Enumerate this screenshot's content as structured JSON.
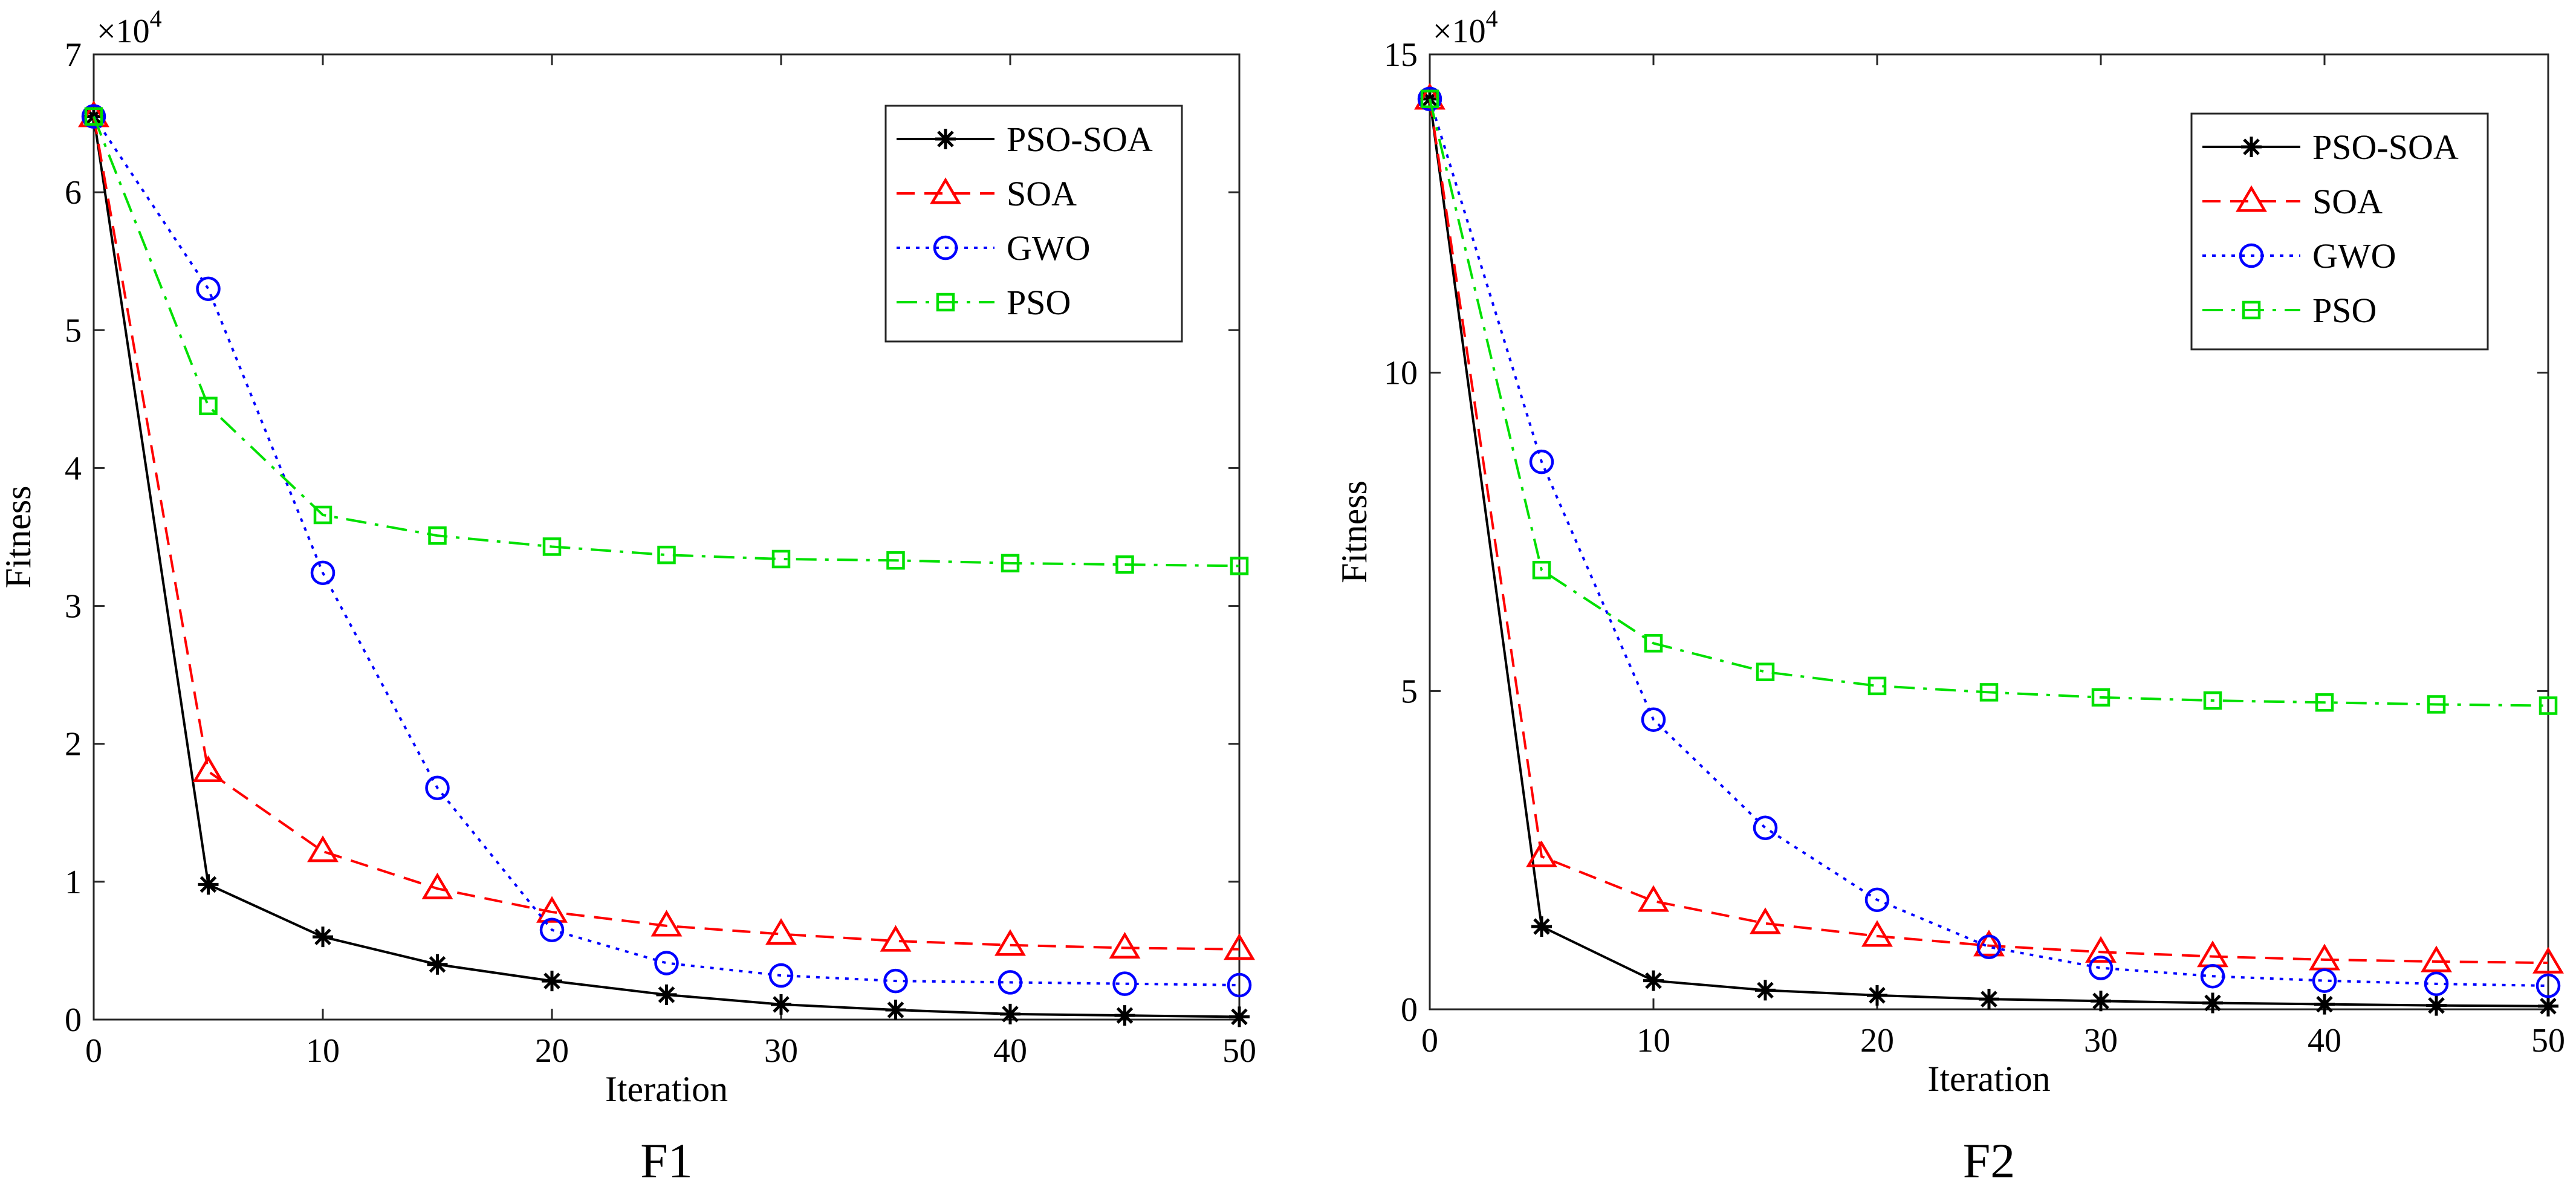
{
  "chart_data": [
    {
      "type": "line",
      "title": "F1",
      "xlabel": "Iteration",
      "ylabel": "Fitness",
      "exponent_label": "×10",
      "exponent_power": "4",
      "xlim": [
        0,
        50
      ],
      "ylim": [
        0,
        7
      ],
      "xticks": [
        0,
        10,
        20,
        30,
        40,
        50
      ],
      "yticks": [
        0,
        1,
        2,
        3,
        4,
        5,
        6,
        7
      ],
      "x": [
        0,
        5,
        10,
        15,
        20,
        25,
        30,
        35,
        40,
        45,
        50
      ],
      "legend_position": "top-right",
      "series": [
        {
          "name": "PSO-SOA",
          "color": "#000000",
          "dash": "solid",
          "marker": "star",
          "values": [
            6.55,
            0.98,
            0.6,
            0.4,
            0.28,
            0.18,
            0.11,
            0.07,
            0.04,
            0.03,
            0.02
          ]
        },
        {
          "name": "SOA",
          "color": "#ff0000",
          "dash": "dashed",
          "marker": "triangle",
          "values": [
            6.55,
            1.8,
            1.22,
            0.95,
            0.78,
            0.68,
            0.62,
            0.57,
            0.54,
            0.52,
            0.51
          ]
        },
        {
          "name": "GWO",
          "color": "#0000ff",
          "dash": "dotted",
          "marker": "circle",
          "values": [
            6.55,
            5.3,
            3.24,
            1.68,
            0.65,
            0.41,
            0.32,
            0.28,
            0.27,
            0.26,
            0.25
          ]
        },
        {
          "name": "PSO",
          "color": "#00e000",
          "dash": "dashdot",
          "marker": "square",
          "values": [
            6.55,
            4.45,
            3.66,
            3.51,
            3.43,
            3.37,
            3.34,
            3.33,
            3.31,
            3.3,
            3.29
          ]
        }
      ]
    },
    {
      "type": "line",
      "title": "F2",
      "xlabel": "Iteration",
      "ylabel": "Fitness",
      "exponent_label": "×10",
      "exponent_power": "4",
      "xlim": [
        0,
        50
      ],
      "ylim": [
        0,
        15
      ],
      "xticks": [
        0,
        10,
        20,
        30,
        40,
        50
      ],
      "yticks": [
        0,
        5,
        10,
        15
      ],
      "x": [
        0,
        5,
        10,
        15,
        20,
        25,
        30,
        35,
        40,
        45,
        50
      ],
      "legend_position": "top-right",
      "series": [
        {
          "name": "PSO-SOA",
          "color": "#000000",
          "dash": "solid",
          "marker": "star",
          "values": [
            14.3,
            1.3,
            0.45,
            0.3,
            0.22,
            0.16,
            0.13,
            0.1,
            0.08,
            0.06,
            0.05
          ]
        },
        {
          "name": "SOA",
          "color": "#ff0000",
          "dash": "dashed",
          "marker": "triangle",
          "values": [
            14.3,
            2.4,
            1.7,
            1.35,
            1.15,
            1.0,
            0.9,
            0.83,
            0.78,
            0.75,
            0.73
          ]
        },
        {
          "name": "GWO",
          "color": "#0000ff",
          "dash": "dotted",
          "marker": "circle",
          "values": [
            14.3,
            8.6,
            4.55,
            2.85,
            1.72,
            0.98,
            0.65,
            0.52,
            0.45,
            0.4,
            0.37
          ]
        },
        {
          "name": "PSO",
          "color": "#00e000",
          "dash": "dashdot",
          "marker": "square",
          "values": [
            14.3,
            6.9,
            5.75,
            5.3,
            5.08,
            4.98,
            4.9,
            4.85,
            4.82,
            4.79,
            4.77
          ]
        }
      ]
    }
  ]
}
